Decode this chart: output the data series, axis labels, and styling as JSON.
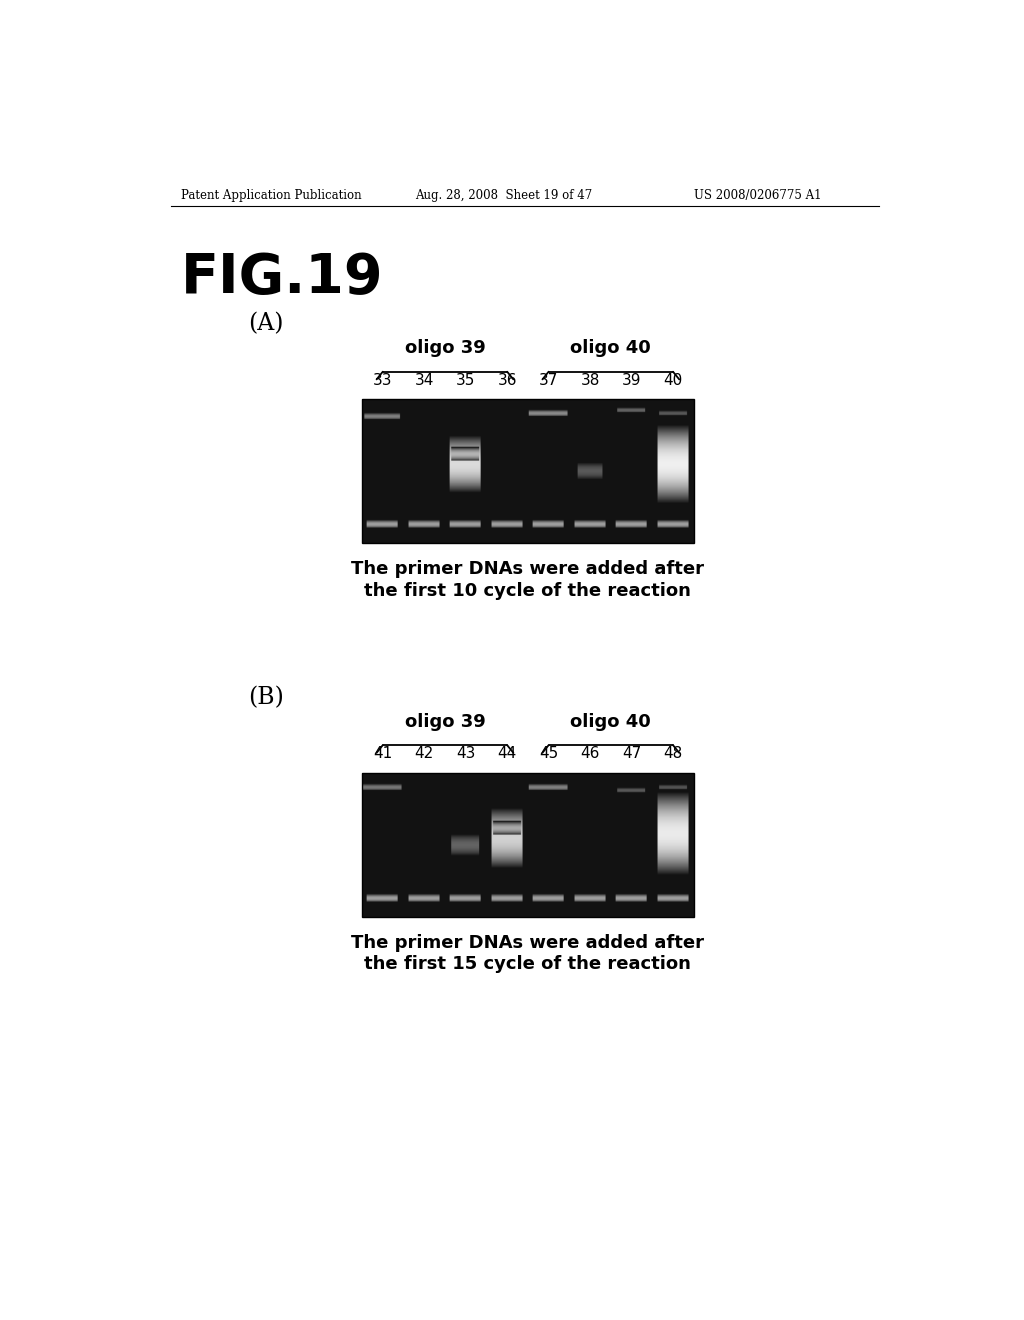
{
  "fig_title": "FIG.19",
  "header_left": "Patent Application Publication",
  "header_center": "Aug. 28, 2008  Sheet 19 of 47",
  "header_right": "US 2008/0206775 A1",
  "panel_A_label": "(A)",
  "panel_B_label": "(B)",
  "panel_A_oligo39_label": "oligo 39",
  "panel_A_oligo40_label": "oligo 40",
  "panel_A_lane_labels": [
    "33",
    "34",
    "35",
    "36",
    "37",
    "38",
    "39",
    "40"
  ],
  "panel_A_caption_line1": "The primer DNAs were added after",
  "panel_A_caption_line2": "the first 10 cycle of the reaction",
  "panel_B_oligo39_label": "oligo 39",
  "panel_B_oligo40_label": "oligo 40",
  "panel_B_lane_labels": [
    "41",
    "42",
    "43",
    "44",
    "45",
    "46",
    "47",
    "48"
  ],
  "panel_B_caption_line1": "The primer DNAs were added after",
  "panel_B_caption_line2": "the first 15 cycle of the reaction",
  "background_color": "#ffffff",
  "text_color": "#000000",
  "gel_bg_color": "#111111"
}
